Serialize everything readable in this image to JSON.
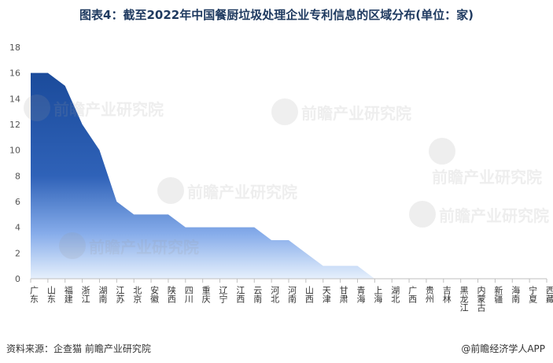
{
  "title": "图表4：截至2022年中国餐厨垃圾处理企业专利信息的区域分布(单位：家)",
  "source": "资料来源：企查猫 前瞻产业研究院",
  "brand": "@前瞻经济学人APP",
  "watermark": "前瞻产业研究院",
  "colors": {
    "area_top": "#1b4b9b",
    "area_bottom": "#e6f0fc",
    "axis": "#bfbfbf",
    "text": "#333333"
  },
  "chart_data": {
    "type": "area",
    "title": "图表4：截至2022年中国餐厨垃圾处理企业专利信息的区域分布(单位：家)",
    "xlabel": "",
    "ylabel": "",
    "ylim": [
      0,
      18
    ],
    "yticks": [
      0,
      2,
      4,
      6,
      8,
      10,
      12,
      14,
      16,
      18
    ],
    "grid": false,
    "categories": [
      "广东",
      "山东",
      "福建",
      "浙江",
      "湖南",
      "江苏",
      "北京",
      "安徽",
      "陕西",
      "四川",
      "重庆",
      "辽宁",
      "江西",
      "云南",
      "河北",
      "河南",
      "山西",
      "天津",
      "甘肃",
      "青海",
      "上海",
      "湖北",
      "广西",
      "贵州",
      "吉林",
      "黑龙江",
      "内蒙古",
      "新疆",
      "海南",
      "宁夏",
      "西藏"
    ],
    "values": [
      16,
      16,
      15,
      12,
      10,
      6,
      5,
      5,
      5,
      4,
      4,
      4,
      4,
      4,
      3,
      3,
      2,
      1,
      1,
      1,
      0,
      0,
      0,
      0,
      0,
      0,
      0,
      0,
      0,
      0,
      0
    ]
  }
}
